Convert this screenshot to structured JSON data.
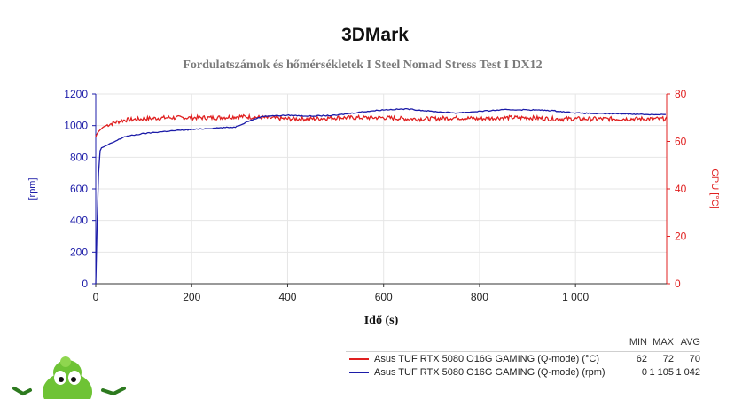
{
  "chart_data": {
    "type": "line",
    "title": "3DMark",
    "subtitle": "Fordulatszámok és hőmérsékletek I Steel Nomad Stress Test I DX12",
    "xlabel": "Idő (s)",
    "ylabel_left": "[rpm]",
    "ylabel_right": "GPU [°C]",
    "xlim": [
      0,
      1190
    ],
    "ylim_left": [
      0,
      1200
    ],
    "ylim_right": [
      0,
      80
    ],
    "x_ticks": [
      0,
      200,
      400,
      600,
      800,
      1000
    ],
    "x_tick_labels": [
      "0",
      "200",
      "400",
      "600",
      "800",
      "1 000"
    ],
    "y_left_ticks": [
      0,
      200,
      400,
      600,
      800,
      1000,
      1200
    ],
    "y_right_ticks": [
      0,
      20,
      40,
      60,
      80
    ],
    "grid": true,
    "legend_placement": "bottom-right",
    "colors": {
      "temp": "#e02020",
      "rpm": "#1c1ca8",
      "left_axis": "#1c1ca8",
      "right_axis": "#e02020"
    },
    "legend_headers": [
      "MIN",
      "MAX",
      "AVG"
    ],
    "series": [
      {
        "name": "Asus TUF RTX 5080 O16G GAMING (Q-mode) (°C)",
        "axis": "right",
        "stats": [
          "62",
          "72",
          "70"
        ],
        "x": [
          0,
          2,
          5,
          10,
          15,
          25,
          40,
          60,
          100,
          150,
          200,
          250,
          300,
          350,
          400,
          450,
          500,
          550,
          600,
          650,
          700,
          750,
          800,
          850,
          900,
          950,
          1000,
          1050,
          1100,
          1150,
          1190
        ],
        "y": [
          62,
          63,
          64,
          65,
          66,
          67,
          68,
          69,
          69.5,
          70,
          70,
          70,
          70.5,
          70,
          69.5,
          69.5,
          70,
          70,
          70,
          69.5,
          69.5,
          70,
          69.5,
          70,
          70,
          69.5,
          69.5,
          69.5,
          69.5,
          69.5,
          69.5
        ]
      },
      {
        "name": "Asus TUF RTX 5080 O16G GAMING (Q-mode) (rpm)",
        "axis": "left",
        "stats": [
          "0",
          "1 105",
          "1 042"
        ],
        "x": [
          0,
          3,
          6,
          9,
          12,
          20,
          40,
          60,
          100,
          150,
          200,
          250,
          290,
          320,
          350,
          400,
          450,
          500,
          550,
          600,
          650,
          700,
          750,
          800,
          850,
          900,
          950,
          1000,
          1050,
          1100,
          1150,
          1190
        ],
        "y": [
          0,
          400,
          700,
          840,
          860,
          870,
          900,
          930,
          950,
          965,
          975,
          985,
          990,
          1030,
          1060,
          1065,
          1060,
          1065,
          1085,
          1100,
          1105,
          1090,
          1080,
          1090,
          1100,
          1100,
          1095,
          1080,
          1075,
          1075,
          1070,
          1070
        ]
      }
    ]
  }
}
